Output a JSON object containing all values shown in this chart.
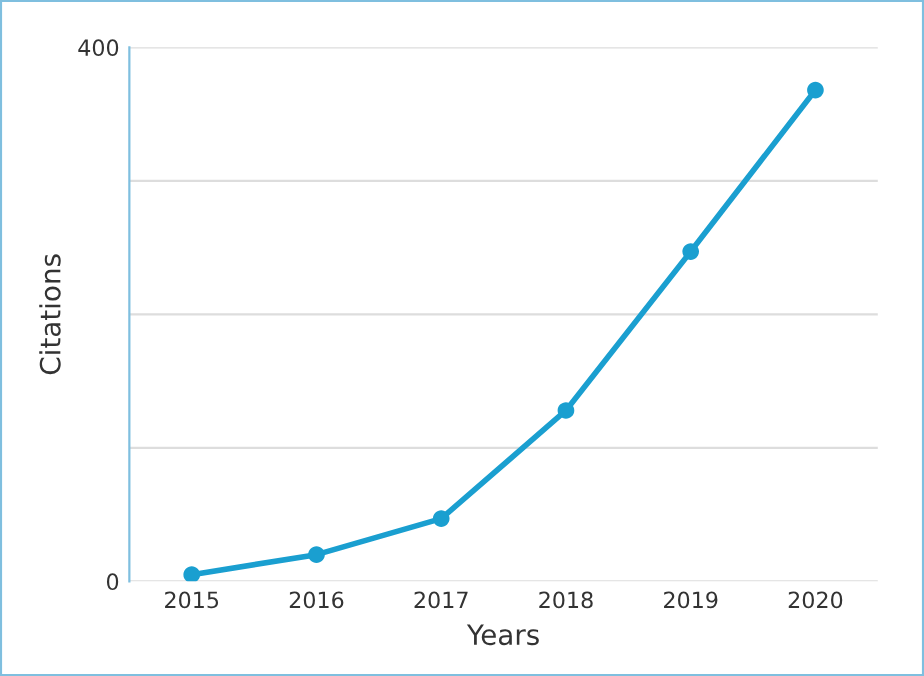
{
  "chart_data": {
    "type": "line",
    "xlabel": "Years",
    "ylabel": "Citations",
    "categories": [
      "2015",
      "2016",
      "2017",
      "2018",
      "2019",
      "2020"
    ],
    "series": [
      {
        "color": "#1a9fd0",
        "values": [
          5,
          20,
          47,
          128,
          247,
          368
        ]
      }
    ],
    "ylim": [
      0,
      400
    ],
    "yticks": [
      0,
      {
        "value": 100,
        "label": null
      },
      {
        "value": 200,
        "label": null
      },
      {
        "value": 300,
        "label": null
      },
      400
    ],
    "grid": "y",
    "marker": "circle",
    "line_style": "solid"
  }
}
